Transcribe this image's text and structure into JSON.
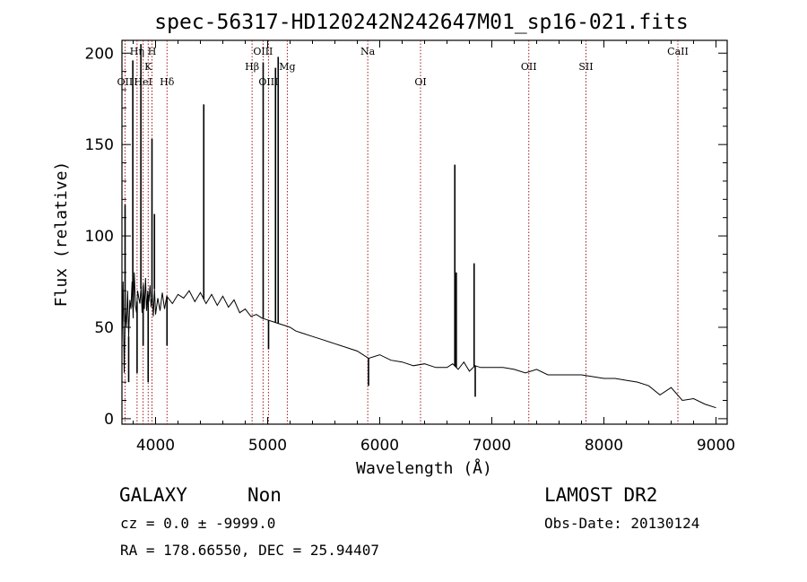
{
  "chart_data": {
    "type": "line",
    "title": "spec-56317-HD120242N242647M01_sp16-021.fits",
    "xlabel": "Wavelength (Å)",
    "ylabel": "Flux (relative)",
    "xlim": [
      3700,
      9100
    ],
    "ylim": [
      -3,
      207
    ],
    "x_ticks": [
      "4000",
      "5000",
      "6000",
      "7000",
      "8000",
      "9000"
    ],
    "y_ticks": [
      "0",
      "50",
      "100",
      "150",
      "200"
    ],
    "grid": false,
    "series": [
      {
        "line_color": "#000000",
        "x": [
          3700,
          3710,
          3720,
          3730,
          3740,
          3750,
          3760,
          3770,
          3780,
          3790,
          3800,
          3810,
          3820,
          3830,
          3840,
          3850,
          3860,
          3870,
          3880,
          3890,
          3900,
          3910,
          3920,
          3930,
          3940,
          3950,
          3960,
          3970,
          3980,
          3990,
          4000,
          4020,
          4040,
          4060,
          4080,
          4100,
          4150,
          4200,
          4250,
          4300,
          4350,
          4400,
          4450,
          4500,
          4550,
          4600,
          4650,
          4700,
          4750,
          4800,
          4850,
          4900,
          4950,
          5000,
          5050,
          5100,
          5150,
          5200,
          5250,
          5300,
          5400,
          5500,
          5600,
          5700,
          5800,
          5900,
          6000,
          6100,
          6200,
          6300,
          6400,
          6500,
          6600,
          6650,
          6700,
          6750,
          6800,
          6850,
          6900,
          7000,
          7100,
          7200,
          7300,
          7400,
          7500,
          7600,
          7700,
          7800,
          7900,
          8000,
          8100,
          8200,
          8300,
          8400,
          8500,
          8600,
          8700,
          8800,
          8900,
          9000
        ],
        "y": [
          40,
          75,
          25,
          60,
          50,
          70,
          45,
          65,
          60,
          75,
          55,
          80,
          62,
          58,
          70,
          66,
          63,
          72,
          58,
          74,
          60,
          77,
          59,
          70,
          64,
          73,
          61,
          68,
          56,
          71,
          57,
          66,
          59,
          69,
          60,
          67,
          63,
          68,
          66,
          70,
          64,
          69,
          63,
          68,
          62,
          67,
          61,
          65,
          58,
          60,
          56,
          57,
          55,
          54,
          53,
          52,
          51,
          50,
          48,
          47,
          45,
          43,
          41,
          39,
          37,
          33,
          35,
          32,
          31,
          29,
          30,
          28,
          28,
          30,
          27,
          31,
          26,
          29,
          28,
          28,
          28,
          27,
          25,
          27,
          24,
          24,
          24,
          24,
          23,
          22,
          22,
          21,
          20,
          18,
          13,
          17,
          10,
          11,
          8,
          6
        ]
      }
    ],
    "spikes": [
      {
        "x": 3728,
        "y": 117
      },
      {
        "x": 3760,
        "y": 20
      },
      {
        "x": 3797,
        "y": 196
      },
      {
        "x": 3835,
        "y": 25
      },
      {
        "x": 3869,
        "y": 205
      },
      {
        "x": 3889,
        "y": 40
      },
      {
        "x": 3934,
        "y": 20
      },
      {
        "x": 3968,
        "y": 153
      },
      {
        "x": 3990,
        "y": 112
      },
      {
        "x": 4102,
        "y": 40
      },
      {
        "x": 4430,
        "y": 172
      },
      {
        "x": 4960,
        "y": 195
      },
      {
        "x": 5008,
        "y": 38
      },
      {
        "x": 5070,
        "y": 192
      },
      {
        "x": 5094,
        "y": 198
      },
      {
        "x": 5900,
        "y": 18
      },
      {
        "x": 6670,
        "y": 139
      },
      {
        "x": 6683,
        "y": 80
      },
      {
        "x": 6842,
        "y": 85
      },
      {
        "x": 6852,
        "y": 12
      }
    ],
    "line_markers": [
      {
        "label": "OII",
        "x": 3727,
        "tier": 3
      },
      {
        "label": "Hη",
        "x": 3835,
        "tier": 1
      },
      {
        "label": "HeI",
        "x": 3889,
        "tier": 3
      },
      {
        "label": "K",
        "x": 3934,
        "tier": 2
      },
      {
        "label": "H",
        "x": 3968,
        "tier": 1
      },
      {
        "label": "Hδ",
        "x": 4102,
        "tier": 3
      },
      {
        "label": "Hβ",
        "x": 4861,
        "tier": 2
      },
      {
        "label": "OIII",
        "x": 4959,
        "tier": 1
      },
      {
        "label": "OIII",
        "x": 5007,
        "tier": 3
      },
      {
        "label": "Mg",
        "x": 5175,
        "tier": 2
      },
      {
        "label": "Na",
        "x": 5893,
        "tier": 1
      },
      {
        "label": "OI",
        "x": 6364,
        "tier": 3
      },
      {
        "label": "OII",
        "x": 7330,
        "tier": 2
      },
      {
        "label": "SII",
        "x": 7840,
        "tier": 2
      },
      {
        "label": "CaII",
        "x": 8660,
        "tier": 1
      }
    ],
    "marker_color": "#990000"
  },
  "footer": {
    "object_class": "GALAXY",
    "subclass": "Non",
    "survey": "LAMOST  DR2",
    "redshift": "cz = 0.0 ± -9999.0",
    "obs_date": "Obs-Date: 20130124",
    "coords": "RA = 178.66550, DEC =  25.94407"
  }
}
